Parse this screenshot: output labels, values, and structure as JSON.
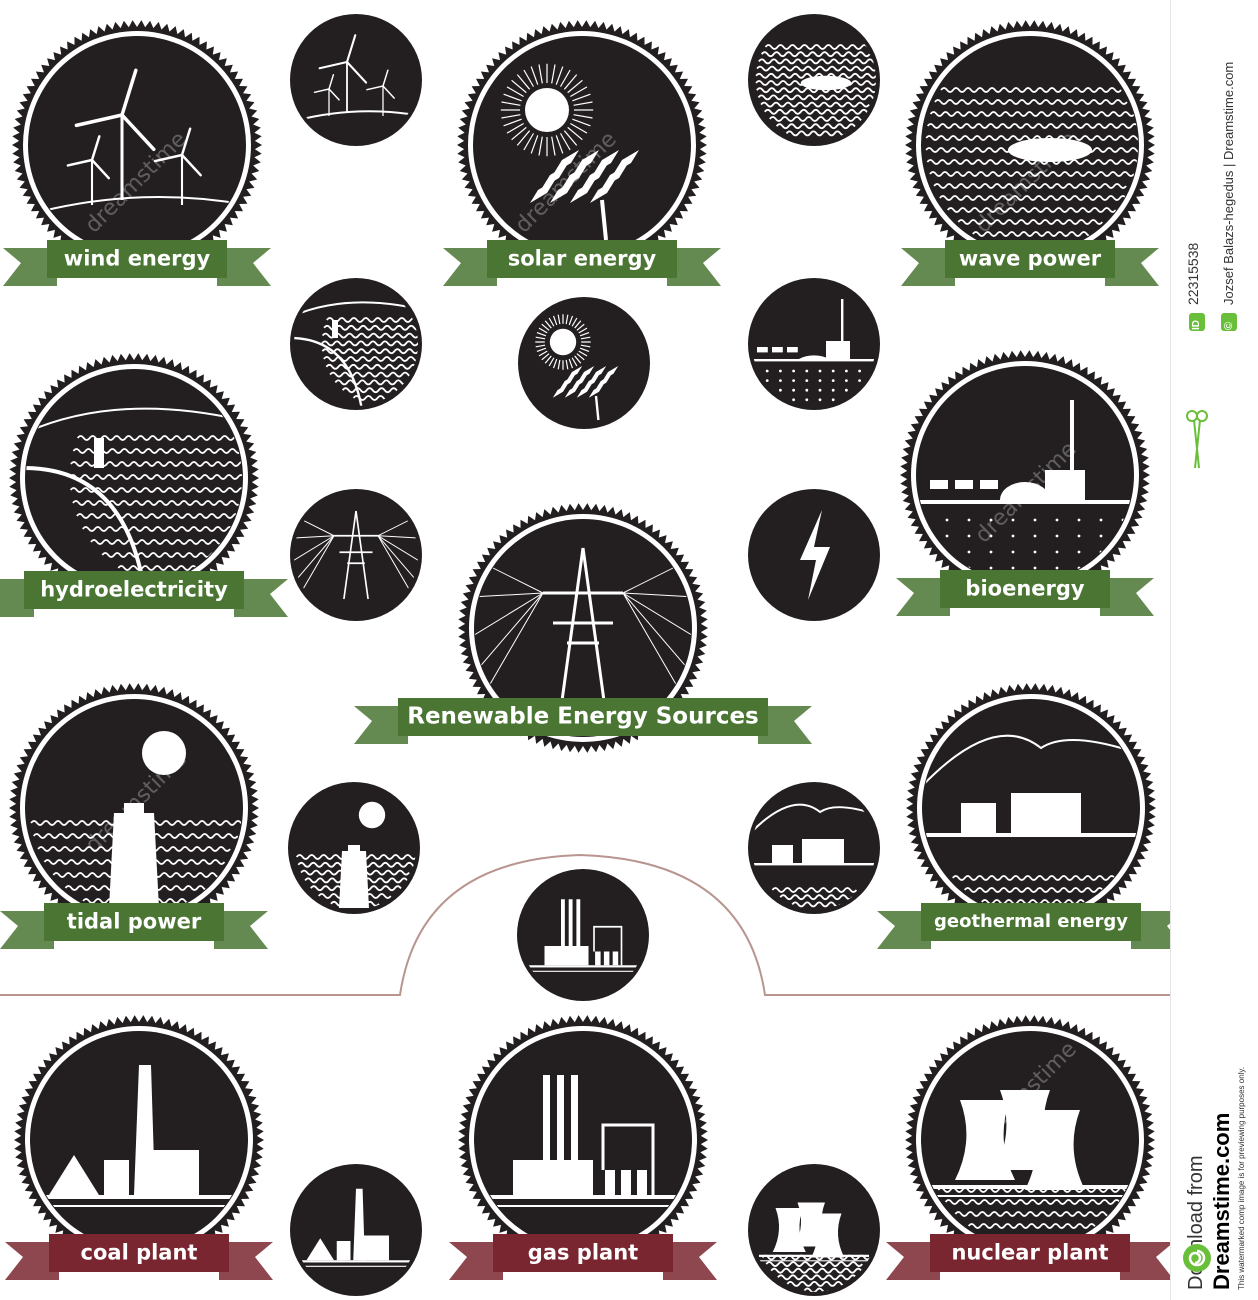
{
  "title": "Renewable Energy Sources",
  "badges": {
    "wind": "wind energy",
    "solar": "solar energy",
    "wave": "wave power",
    "hydro": "hydroelectricity",
    "bio": "bioenergy",
    "tidal": "tidal power",
    "geo": "geothermal energy",
    "coal": "coal plant",
    "gas": "gas plant",
    "nuclear": "nuclear plant"
  },
  "sidebar": {
    "id_badge": "ID",
    "id_number": "22315538",
    "copyright": "©",
    "credit": "Jozsef Balazs-hegedus | Dreamstime.com",
    "download_from": "Download from",
    "site": "Dreamstime.com",
    "note": "This watermarked comp image is for previewing purposes only."
  },
  "watermark": "dreamstime",
  "colors": {
    "badge_fill": "#231f20",
    "green_ribbon": "#4a7533",
    "red_ribbon": "#7a2630",
    "divider": "#b8958f",
    "sidebar_green": "#6abf3a"
  }
}
